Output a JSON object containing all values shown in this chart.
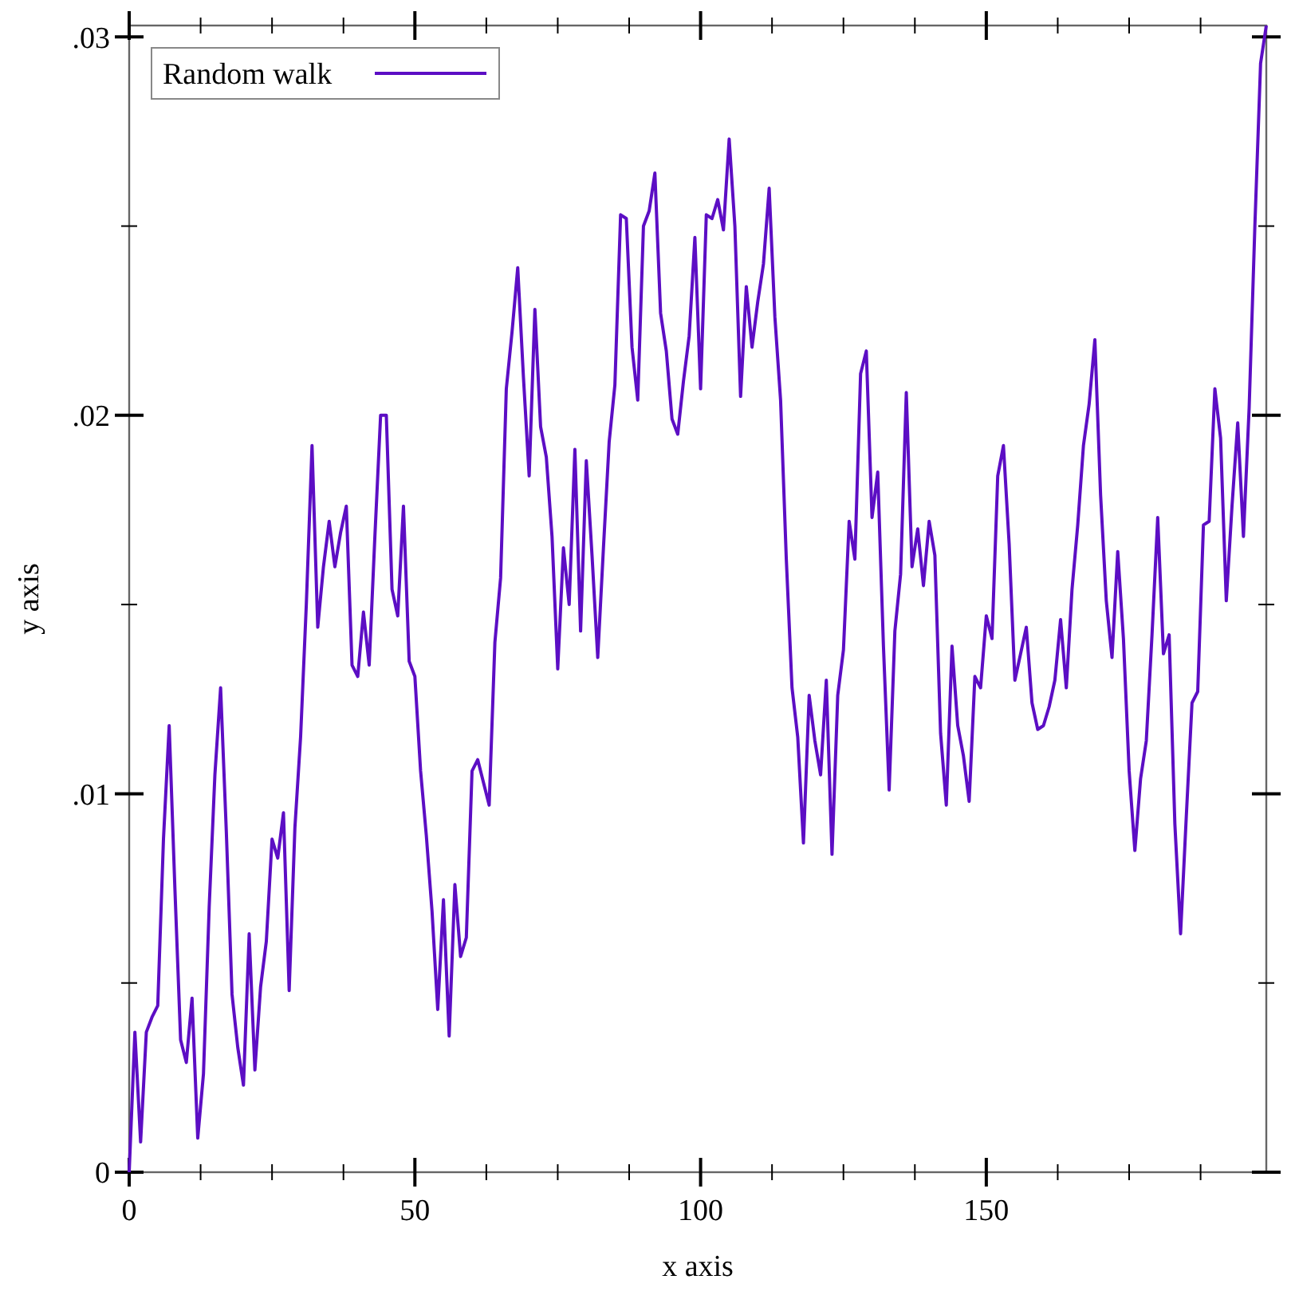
{
  "chart_data": {
    "type": "line",
    "xlabel": "x axis",
    "ylabel": "y axis",
    "x": [
      0,
      1,
      2,
      3,
      4,
      5,
      6,
      7,
      8,
      9,
      10,
      11,
      12,
      13,
      14,
      15,
      16,
      17,
      18,
      19,
      20,
      21,
      22,
      23,
      24,
      25,
      26,
      27,
      28,
      29,
      30,
      31,
      32,
      33,
      34,
      35,
      36,
      37,
      38,
      39,
      40,
      41,
      42,
      43,
      44,
      45,
      46,
      47,
      48,
      49,
      50,
      51,
      52,
      53,
      54,
      55,
      56,
      57,
      58,
      59,
      60,
      61,
      62,
      63,
      64,
      65,
      66,
      67,
      68,
      69,
      70,
      71,
      72,
      73,
      74,
      75,
      76,
      77,
      78,
      79,
      80,
      81,
      82,
      83,
      84,
      85,
      86,
      87,
      88,
      89,
      90,
      91,
      92,
      93,
      94,
      95,
      96,
      97,
      98,
      99,
      100,
      101,
      102,
      103,
      104,
      105,
      106,
      107,
      108,
      109,
      110,
      111,
      112,
      113,
      114,
      115,
      116,
      117,
      118,
      119,
      120,
      121,
      122,
      123,
      124,
      125,
      126,
      127,
      128,
      129,
      130,
      131,
      132,
      133,
      134,
      135,
      136,
      137,
      138,
      139,
      140,
      141,
      142,
      143,
      144,
      145,
      146,
      147,
      148,
      149,
      150,
      151,
      152,
      153,
      154,
      155,
      156,
      157,
      158,
      159,
      160,
      161,
      162,
      163,
      164,
      165,
      166,
      167,
      168,
      169,
      170,
      171,
      172,
      173,
      174,
      175,
      176,
      177,
      178,
      179,
      180,
      181,
      182,
      183,
      184,
      185,
      186,
      187,
      188,
      189,
      190,
      191,
      192,
      193,
      194,
      195,
      196,
      197,
      198,
      199
    ],
    "xlim": [
      0,
      199
    ],
    "ylim": [
      0,
      0.0303
    ],
    "xticks": [
      0,
      {
        "value": 12.5,
        "label": null
      },
      {
        "value": 25,
        "label": null
      },
      {
        "value": 37.5,
        "label": null
      },
      50,
      {
        "value": 62.5,
        "label": null
      },
      {
        "value": 75,
        "label": null
      },
      {
        "value": 87.5,
        "label": null
      },
      100,
      {
        "value": 112.5,
        "label": null
      },
      {
        "value": 125,
        "label": null
      },
      {
        "value": 137.5,
        "label": null
      },
      150,
      {
        "value": 162.5,
        "label": null
      },
      {
        "value": 175,
        "label": null
      },
      {
        "value": 187.5,
        "label": null
      }
    ],
    "yticks": [
      0,
      {
        "value": 0.005,
        "label": null
      },
      {
        "value": 0.01,
        "label": ".01"
      },
      {
        "value": 0.015,
        "label": null
      },
      {
        "value": 0.02,
        "label": ".02"
      },
      {
        "value": 0.025,
        "label": null
      },
      {
        "value": 0.03,
        "label": ".03"
      }
    ],
    "legend": "top left",
    "grid": false,
    "marker": "none",
    "line_style": "solid",
    "series": [
      {
        "name": "Random walk",
        "color": "#5c0ec4",
        "values": [
          0,
          0.0037,
          0.0008,
          0.0037,
          0.0041,
          0.0044,
          0.0088,
          0.0118,
          0.0075,
          0.0035,
          0.0029,
          0.0046,
          0.0009,
          0.0026,
          0.007,
          0.0105,
          0.0128,
          0.009,
          0.0047,
          0.0033,
          0.0023,
          0.0063,
          0.0027,
          0.0049,
          0.0061,
          0.0088,
          0.0083,
          0.0095,
          0.0048,
          0.0091,
          0.0115,
          0.015,
          0.0192,
          0.0144,
          0.016,
          0.0172,
          0.016,
          0.0169,
          0.0176,
          0.0134,
          0.0131,
          0.0148,
          0.0134,
          0.0168,
          0.02,
          0.02,
          0.0154,
          0.0147,
          0.0176,
          0.0135,
          0.0131,
          0.0106,
          0.0089,
          0.0069,
          0.0043,
          0.0072,
          0.0036,
          0.0076,
          0.0057,
          0.0062,
          0.0106,
          0.0109,
          0.0103,
          0.0097,
          0.014,
          0.0157,
          0.0207,
          0.0222,
          0.0239,
          0.021,
          0.0184,
          0.0228,
          0.0197,
          0.0189,
          0.0168,
          0.0133,
          0.0165,
          0.015,
          0.0191,
          0.0143,
          0.0188,
          0.0163,
          0.0136,
          0.0165,
          0.0193,
          0.0208,
          0.0253,
          0.0252,
          0.0218,
          0.0204,
          0.025,
          0.0254,
          0.0264,
          0.0227,
          0.0217,
          0.0199,
          0.0195,
          0.0209,
          0.0221,
          0.0247,
          0.0207,
          0.0253,
          0.0252,
          0.0257,
          0.0249,
          0.0273,
          0.025,
          0.0205,
          0.0234,
          0.0218,
          0.023,
          0.024,
          0.026,
          0.0226,
          0.0204,
          0.0162,
          0.0128,
          0.0115,
          0.0087,
          0.0126,
          0.0114,
          0.0105,
          0.013,
          0.0084,
          0.0126,
          0.0138,
          0.0172,
          0.0162,
          0.0211,
          0.0217,
          0.0173,
          0.0185,
          0.0139,
          0.0101,
          0.0143,
          0.0158,
          0.0206,
          0.016,
          0.017,
          0.0155,
          0.0172,
          0.0163,
          0.0116,
          0.0097,
          0.0139,
          0.0118,
          0.011,
          0.0098,
          0.0131,
          0.0128,
          0.0147,
          0.0141,
          0.0184,
          0.0192,
          0.0166,
          0.013,
          0.0137,
          0.0144,
          0.0124,
          0.0117,
          0.0118,
          0.0123,
          0.013,
          0.0146,
          0.0128,
          0.0154,
          0.0171,
          0.0192,
          0.0203,
          0.022,
          0.0179,
          0.0151,
          0.0136,
          0.0164,
          0.0141,
          0.0106,
          0.0085,
          0.0104,
          0.0114,
          0.0142,
          0.0173,
          0.0137,
          0.0142,
          0.0092,
          0.0063,
          0.0094,
          0.0124,
          0.0127,
          0.0171,
          0.0172,
          0.0207,
          0.0194,
          0.0151,
          0.0176,
          0.0198,
          0.0168,
          0.0202,
          0.025,
          0.0293,
          0.0303
        ]
      }
    ]
  }
}
